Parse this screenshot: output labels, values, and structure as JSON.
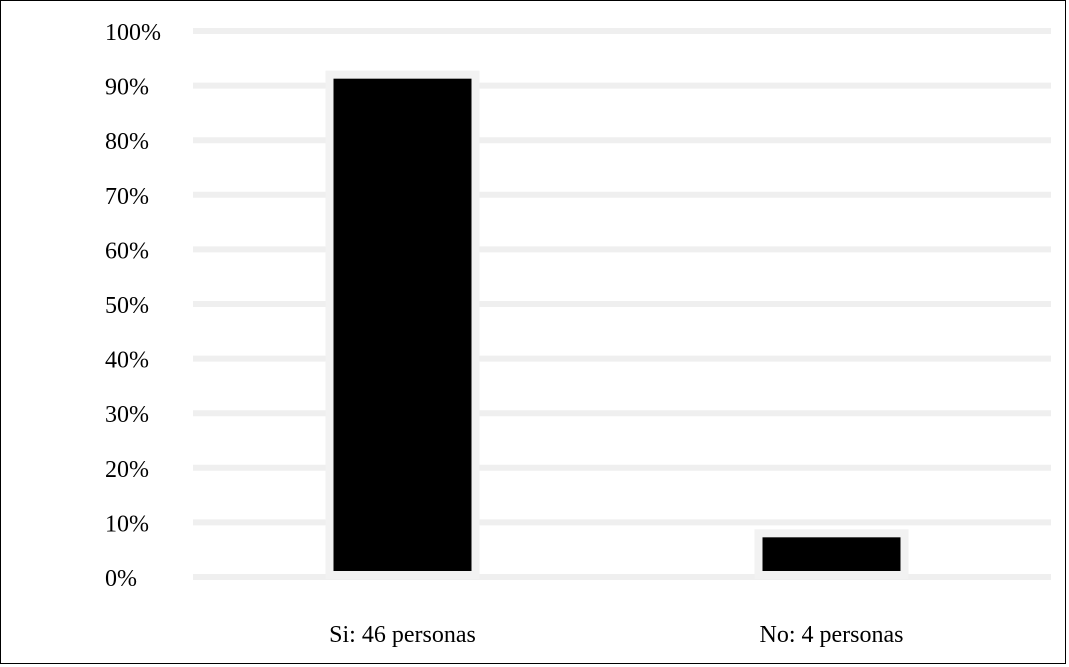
{
  "chart_data": {
    "type": "bar",
    "categories": [
      "Si: 46 personas",
      "No: 4 personas"
    ],
    "values": [
      92,
      8
    ],
    "value_unit": "%",
    "title": "",
    "xlabel": "",
    "ylabel": "",
    "ylim": [
      0,
      100
    ],
    "y_ticks": [
      "0%",
      "10%",
      "20%",
      "30%",
      "40%",
      "50%",
      "60%",
      "70%",
      "80%",
      "90%",
      "100%"
    ],
    "grid": true,
    "legend": "none",
    "colors": {
      "bar": "#000000",
      "bar_outline": "#f2f2f2",
      "grid": "#efefef",
      "text": "#000000",
      "border": "#000000"
    }
  }
}
